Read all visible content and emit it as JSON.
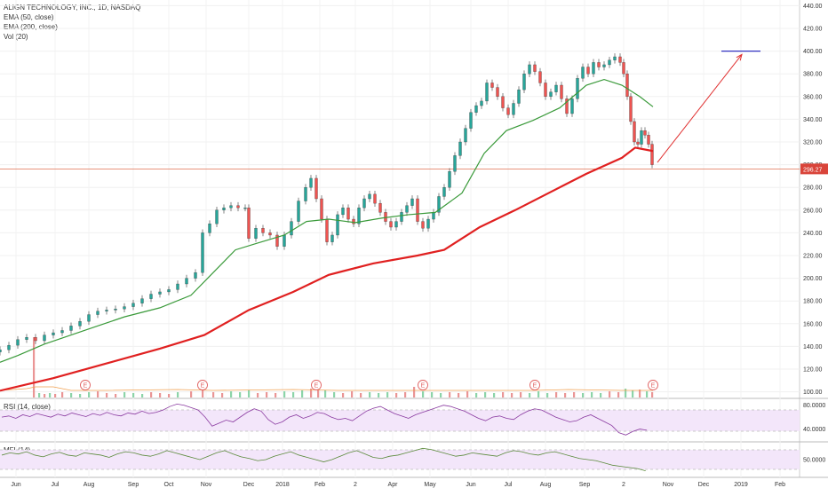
{
  "chart_data": {
    "type": "candlestick",
    "title": "ALIGN TECHNOLOGY, INC., 1D, NASDAQ",
    "indicators": [
      "EMA (50, close)",
      "EMA (200, close)",
      "Vol (20)"
    ],
    "last_price_label": "296.27",
    "last_price": 296.27,
    "ylim": [
      95,
      445
    ],
    "y_ticks": [
      {
        "label": "440.00",
        "v": 440
      },
      {
        "label": "420.00",
        "v": 420
      },
      {
        "label": "400.00",
        "v": 400
      },
      {
        "label": "380.00",
        "v": 380
      },
      {
        "label": "360.00",
        "v": 360
      },
      {
        "label": "340.00",
        "v": 340
      },
      {
        "label": "320.00",
        "v": 320
      },
      {
        "label": "300.00",
        "v": 300
      },
      {
        "label": "280.00",
        "v": 280
      },
      {
        "label": "260.00",
        "v": 260
      },
      {
        "label": "240.00",
        "v": 240
      },
      {
        "label": "220.00",
        "v": 220
      },
      {
        "label": "200.00",
        "v": 200
      },
      {
        "label": "180.00",
        "v": 180
      },
      {
        "label": "160.00",
        "v": 160
      },
      {
        "label": "140.00",
        "v": 140
      },
      {
        "label": "120.00",
        "v": 120
      },
      {
        "label": "100.00",
        "v": 100
      }
    ],
    "x_ticks": [
      "Jun",
      "Jul",
      "Aug",
      "Sep",
      "Oct",
      "Nov",
      "Dec",
      "2018",
      "Feb",
      "2",
      "Apr",
      "May",
      "Jun",
      "Jul",
      "Aug",
      "Sep",
      "2",
      "Nov",
      "Dec",
      "2019",
      "Feb"
    ],
    "ema50": [
      [
        0,
        126
      ],
      [
        20,
        132
      ],
      [
        50,
        142
      ],
      [
        80,
        150
      ],
      [
        110,
        158
      ],
      [
        140,
        166
      ],
      [
        180,
        174
      ],
      [
        215,
        185
      ],
      [
        240,
        205
      ],
      [
        265,
        225
      ],
      [
        290,
        231
      ],
      [
        320,
        238
      ],
      [
        345,
        250
      ],
      [
        370,
        252
      ],
      [
        400,
        249
      ],
      [
        430,
        253
      ],
      [
        460,
        256
      ],
      [
        490,
        258
      ],
      [
        520,
        275
      ],
      [
        545,
        310
      ],
      [
        570,
        330
      ],
      [
        600,
        339
      ],
      [
        630,
        350
      ],
      [
        660,
        370
      ],
      [
        680,
        375
      ],
      [
        700,
        370
      ],
      [
        720,
        360
      ],
      [
        735,
        351
      ]
    ],
    "ema200": [
      [
        0,
        101
      ],
      [
        60,
        112
      ],
      [
        120,
        125
      ],
      [
        180,
        138
      ],
      [
        230,
        150
      ],
      [
        280,
        172
      ],
      [
        330,
        188
      ],
      [
        370,
        203
      ],
      [
        420,
        213
      ],
      [
        470,
        220
      ],
      [
        500,
        225
      ],
      [
        540,
        245
      ],
      [
        580,
        260
      ],
      [
        620,
        276
      ],
      [
        660,
        292
      ],
      [
        700,
        306
      ],
      [
        715,
        315
      ],
      [
        735,
        312
      ]
    ],
    "candles": [
      [
        0,
        137
      ],
      [
        10,
        141
      ],
      [
        20,
        146
      ],
      [
        30,
        148
      ],
      [
        40,
        145
      ],
      [
        50,
        150
      ],
      [
        60,
        152
      ],
      [
        70,
        154
      ],
      [
        80,
        158
      ],
      [
        90,
        162
      ],
      [
        100,
        168
      ],
      [
        110,
        171
      ],
      [
        120,
        172
      ],
      [
        130,
        173
      ],
      [
        140,
        175
      ],
      [
        150,
        178
      ],
      [
        160,
        182
      ],
      [
        170,
        186
      ],
      [
        180,
        188
      ],
      [
        190,
        190
      ],
      [
        200,
        195
      ],
      [
        210,
        200
      ],
      [
        220,
        205
      ],
      [
        228,
        240
      ],
      [
        236,
        248
      ],
      [
        244,
        260
      ],
      [
        252,
        262
      ],
      [
        260,
        264
      ],
      [
        268,
        262
      ],
      [
        276,
        262
      ],
      [
        280,
        235
      ],
      [
        288,
        244
      ],
      [
        296,
        240
      ],
      [
        304,
        238
      ],
      [
        312,
        228
      ],
      [
        320,
        238
      ],
      [
        328,
        250
      ],
      [
        336,
        268
      ],
      [
        344,
        280
      ],
      [
        350,
        288
      ],
      [
        356,
        270
      ],
      [
        362,
        252
      ],
      [
        368,
        232
      ],
      [
        374,
        238
      ],
      [
        380,
        256
      ],
      [
        386,
        262
      ],
      [
        392,
        252
      ],
      [
        398,
        248
      ],
      [
        404,
        262
      ],
      [
        410,
        270
      ],
      [
        416,
        274
      ],
      [
        422,
        266
      ],
      [
        428,
        258
      ],
      [
        434,
        250
      ],
      [
        440,
        245
      ],
      [
        446,
        250
      ],
      [
        452,
        258
      ],
      [
        458,
        264
      ],
      [
        464,
        270
      ],
      [
        470,
        250
      ],
      [
        476,
        244
      ],
      [
        482,
        252
      ],
      [
        488,
        258
      ],
      [
        494,
        272
      ],
      [
        500,
        280
      ],
      [
        506,
        294
      ],
      [
        512,
        308
      ],
      [
        518,
        320
      ],
      [
        524,
        332
      ],
      [
        530,
        346
      ],
      [
        536,
        352
      ],
      [
        542,
        356
      ],
      [
        548,
        372
      ],
      [
        554,
        368
      ],
      [
        560,
        360
      ],
      [
        566,
        350
      ],
      [
        572,
        344
      ],
      [
        578,
        354
      ],
      [
        584,
        366
      ],
      [
        590,
        380
      ],
      [
        596,
        388
      ],
      [
        602,
        382
      ],
      [
        608,
        372
      ],
      [
        614,
        360
      ],
      [
        620,
        364
      ],
      [
        626,
        370
      ],
      [
        632,
        358
      ],
      [
        638,
        345
      ],
      [
        644,
        358
      ],
      [
        650,
        376
      ],
      [
        656,
        386
      ],
      [
        662,
        380
      ],
      [
        668,
        390
      ],
      [
        674,
        386
      ],
      [
        680,
        388
      ],
      [
        686,
        392
      ],
      [
        692,
        395
      ],
      [
        698,
        390
      ],
      [
        702,
        380
      ],
      [
        706,
        360
      ],
      [
        710,
        338
      ],
      [
        714,
        320
      ],
      [
        718,
        318
      ],
      [
        722,
        330
      ],
      [
        726,
        326
      ],
      [
        730,
        318
      ],
      [
        734,
        300
      ]
    ],
    "volume": [
      [
        38,
        68
      ],
      [
        44,
        5
      ],
      [
        50,
        4
      ],
      [
        56,
        5
      ],
      [
        62,
        4
      ],
      [
        70,
        6
      ],
      [
        80,
        5
      ],
      [
        90,
        4
      ],
      [
        100,
        6
      ],
      [
        110,
        7
      ],
      [
        120,
        5
      ],
      [
        130,
        4
      ],
      [
        140,
        6
      ],
      [
        150,
        5
      ],
      [
        160,
        4
      ],
      [
        170,
        6
      ],
      [
        180,
        5
      ],
      [
        190,
        4
      ],
      [
        200,
        6
      ],
      [
        215,
        7
      ],
      [
        228,
        9
      ],
      [
        240,
        6
      ],
      [
        250,
        5
      ],
      [
        260,
        7
      ],
      [
        270,
        6
      ],
      [
        280,
        8
      ],
      [
        290,
        5
      ],
      [
        300,
        6
      ],
      [
        310,
        5
      ],
      [
        320,
        7
      ],
      [
        330,
        6
      ],
      [
        340,
        8
      ],
      [
        350,
        10
      ],
      [
        358,
        15
      ],
      [
        366,
        8
      ],
      [
        376,
        6
      ],
      [
        386,
        5
      ],
      [
        396,
        7
      ],
      [
        406,
        5
      ],
      [
        416,
        6
      ],
      [
        426,
        5
      ],
      [
        436,
        6
      ],
      [
        446,
        5
      ],
      [
        456,
        6
      ],
      [
        466,
        12
      ],
      [
        476,
        7
      ],
      [
        486,
        6
      ],
      [
        496,
        5
      ],
      [
        506,
        6
      ],
      [
        516,
        5
      ],
      [
        526,
        7
      ],
      [
        536,
        5
      ],
      [
        546,
        6
      ],
      [
        556,
        5
      ],
      [
        566,
        6
      ],
      [
        576,
        5
      ],
      [
        586,
        6
      ],
      [
        596,
        5
      ],
      [
        606,
        7
      ],
      [
        616,
        5
      ],
      [
        626,
        6
      ],
      [
        636,
        5
      ],
      [
        646,
        6
      ],
      [
        656,
        5
      ],
      [
        666,
        6
      ],
      [
        676,
        5
      ],
      [
        686,
        7
      ],
      [
        696,
        6
      ],
      [
        704,
        10
      ],
      [
        712,
        8
      ],
      [
        720,
        9
      ],
      [
        728,
        7
      ],
      [
        734,
        6
      ]
    ],
    "earnings_markers_x": [
      96,
      228,
      356,
      476,
      602,
      735
    ],
    "annotations": {
      "target_line": {
        "from_x": 812,
        "to_x": 856,
        "y": 400
      },
      "arrow": {
        "from": [
          740,
          302
        ],
        "to": [
          835,
          397
        ]
      },
      "last_price_line_y": 296.27
    }
  },
  "rsi": {
    "label": "RSI (14, close)",
    "ticks": [
      {
        "label": "80.0000",
        "v": 80
      },
      {
        "label": "40.0000",
        "v": 40
      }
    ],
    "values": [
      60,
      62,
      58,
      64,
      61,
      66,
      63,
      60,
      65,
      62,
      67,
      64,
      61,
      66,
      63,
      68,
      64,
      62,
      67,
      65,
      70,
      66,
      68,
      72,
      78,
      82,
      80,
      76,
      72,
      60,
      45,
      50,
      55,
      52,
      60,
      68,
      74,
      70,
      56,
      48,
      52,
      60,
      64,
      58,
      62,
      68,
      66,
      60,
      56,
      58,
      54,
      62,
      70,
      75,
      78,
      72,
      66,
      62,
      58,
      64,
      68,
      72,
      76,
      80,
      78,
      74,
      70,
      64,
      58,
      54,
      60,
      62,
      58,
      56,
      64,
      70,
      74,
      72,
      66,
      60,
      56,
      52,
      54,
      60,
      64,
      58,
      52,
      46,
      34,
      30,
      36,
      40,
      38
    ]
  },
  "mfi": {
    "label": "MFI (14)",
    "ticks": [
      {
        "label": "50.0000",
        "v": 50
      }
    ],
    "values": [
      58,
      62,
      60,
      64,
      58,
      55,
      60,
      63,
      58,
      56,
      62,
      60,
      58,
      54,
      60,
      64,
      62,
      58,
      56,
      60,
      66,
      62,
      58,
      54,
      50,
      56,
      62,
      66,
      60,
      55,
      52,
      48,
      50,
      56,
      60,
      64,
      58,
      54,
      50,
      46,
      50,
      56,
      62,
      66,
      60,
      54,
      52,
      56,
      58,
      62,
      66,
      70,
      68,
      64,
      60,
      56,
      58,
      62,
      60,
      58,
      56,
      62,
      66,
      64,
      60,
      58,
      62,
      64,
      60,
      56,
      52,
      50,
      48,
      44,
      40,
      38,
      36,
      34,
      30
    ]
  }
}
